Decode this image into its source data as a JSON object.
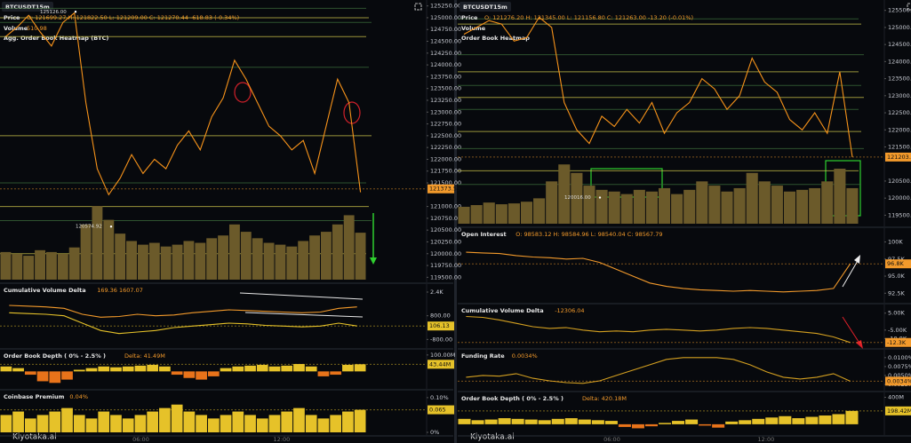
{
  "panels": [
    {
      "symbol": "BTCUSDT",
      "interval": "15m",
      "volume_label": "Volume",
      "volume_value": "510.98",
      "heatmap_title": "Agg. Order Book Heatmap (BTC)",
      "logo": "Kiyotaka.ai",
      "time_labels": [
        "06:00",
        "12:00"
      ],
      "panes": [
        {
          "title": "Price",
          "readout": "O: 121699.27  H: 121822.50  L: 121209.00  C: 121270.44  -618.83 (-0.34%)",
          "ylim": [
            119450,
            125300
          ],
          "yticks": [
            {
              "value": 125250,
              "label": "125250.00"
            },
            {
              "value": 125000,
              "label": "125000.00"
            },
            {
              "value": 124750,
              "label": "124750.00"
            },
            {
              "value": 124500,
              "label": "124500.00"
            },
            {
              "value": 124250,
              "label": "124250.00"
            },
            {
              "value": 124000,
              "label": "124000.00"
            },
            {
              "value": 123750,
              "label": "123750.00"
            },
            {
              "value": 123500,
              "label": "123500.00"
            },
            {
              "value": 123250,
              "label": "123250.00"
            },
            {
              "value": 123000,
              "label": "123000.00"
            },
            {
              "value": 122750,
              "label": "122750.00"
            },
            {
              "value": 122500,
              "label": "122500.00"
            },
            {
              "value": 122250,
              "label": "122250.00"
            },
            {
              "value": 122000,
              "label": "122000.00"
            },
            {
              "value": 121750,
              "label": "121750.00"
            },
            {
              "value": 121500,
              "label": "121500.00"
            },
            {
              "value": 121000,
              "label": "121000.00"
            },
            {
              "value": 120750,
              "label": "120750.00"
            },
            {
              "value": 120500,
              "label": "120500.00"
            },
            {
              "value": 120250,
              "label": "120250.00"
            },
            {
              "value": 120000,
              "label": "120000.00"
            },
            {
              "value": 119750,
              "label": "119750.00"
            },
            {
              "value": 119500,
              "label": "119500.00"
            }
          ],
          "tag": {
            "value": 121373.59,
            "label": "121373.59",
            "color": "#f39a2b"
          },
          "levels": [
            125200,
            125000,
            124900,
            124600,
            123950,
            122500,
            121500,
            121000,
            120700,
            120000
          ],
          "annotations": [
            {
              "value": 125126,
              "label": "125126.00"
            },
            {
              "value": 120574.92,
              "label": "120574.92"
            }
          ],
          "series": [
            {
              "type": "bar",
              "color": "#6b5a2a",
              "ylim": [
                0,
                3000
              ],
              "values": [
                300,
                280,
                260,
                320,
                300,
                280,
                350,
                600,
                800,
                650,
                500,
                420,
                380,
                400,
                360,
                380,
                420,
                400,
                450,
                480,
                600,
                520,
                450,
                400,
                380,
                360,
                420,
                480,
                520,
                600,
                700,
                510
              ]
            },
            {
              "type": "line",
              "color": "#f7931a",
              "values": [
                124600,
                124800,
                125050,
                124700,
                124400,
                124900,
                125100,
                123200,
                121800,
                121250,
                121600,
                122100,
                121700,
                122000,
                121800,
                122300,
                122600,
                122200,
                122900,
                123300,
                124100,
                123700,
                123200,
                122700,
                122500,
                122200,
                122400,
                121700,
                122700,
                123700,
                123200,
                121300
              ]
            }
          ]
        },
        {
          "title": "Cumulative Volume Delta",
          "readout": "169.36  1607.07",
          "ylim": [
            -1200,
            2700
          ],
          "yticks": [
            {
              "value": 2400,
              "label": "2.4K"
            },
            {
              "value": 800,
              "label": "800.00"
            },
            {
              "value": -800,
              "label": "-800.00"
            }
          ],
          "tag": {
            "value": 106.13,
            "label": "106.13",
            "color": "#e6c229"
          },
          "series": [
            {
              "type": "line",
              "color": "#f39a2b",
              "values": [
                1500,
                1450,
                1400,
                1300,
                900,
                700,
                750,
                900,
                800,
                850,
                1000,
                1100,
                1200,
                1150,
                1100,
                1050,
                1000,
                1050,
                1300,
                1400
              ]
            },
            {
              "type": "line",
              "color": "#e6c229",
              "values": [
                1000,
                950,
                900,
                800,
                300,
                -200,
                -400,
                -300,
                -200,
                0,
                100,
                200,
                300,
                250,
                150,
                100,
                50,
                100,
                300,
                106.13
              ]
            }
          ]
        },
        {
          "title": "Order Book Depth ( 0% - 2.5% )",
          "readout": "Delta: 41.49M",
          "ylim": [
            -90,
            110
          ],
          "yticks": [
            {
              "value": 100,
              "label": "100.00M"
            }
          ],
          "tag": {
            "value": 43.44,
            "label": "43.44M",
            "color": "#e6c229"
          },
          "series": [
            {
              "type": "bar",
              "color": "#e6c229",
              "neg_color": "#e8731a",
              "values": [
                30,
                20,
                -20,
                -60,
                -70,
                -50,
                10,
                20,
                30,
                25,
                30,
                35,
                40,
                30,
                -20,
                -40,
                -50,
                -30,
                20,
                30,
                35,
                40,
                30,
                35,
                45,
                30,
                -30,
                -20,
                40,
                43.44
              ]
            }
          ]
        },
        {
          "title": "Coinbase Premium",
          "readout": "0.04%",
          "ylim": [
            0,
            0.11
          ],
          "yticks": [
            {
              "value": 0.1,
              "label": "0.10%"
            },
            {
              "value": 0,
              "label": "0%"
            }
          ],
          "tag": {
            "value": 0.065,
            "label": "0.065",
            "color": "#e6c229"
          },
          "series": [
            {
              "type": "bar",
              "color": "#e6c229",
              "values": [
                0.05,
                0.06,
                0.04,
                0.05,
                0.06,
                0.07,
                0.05,
                0.04,
                0.06,
                0.05,
                0.04,
                0.05,
                0.06,
                0.07,
                0.08,
                0.06,
                0.05,
                0.04,
                0.05,
                0.06,
                0.05,
                0.04,
                0.05,
                0.06,
                0.07,
                0.05,
                0.04,
                0.05,
                0.06,
                0.065
              ]
            }
          ]
        }
      ]
    },
    {
      "symbol": "BTCUSDT",
      "interval": "15m",
      "volume_label": "Volume",
      "heatmap_title": "Order Book Heatmap",
      "logo": "Kiyotaka.ai",
      "time_labels": [
        "06:00",
        "12:00"
      ],
      "panes": [
        {
          "title": "Price",
          "readout": "O: 121276.20  H: 121345.00  L: 121156.80  C: 121263.00  -13.20 (-0.01%)",
          "ylim": [
            119250,
            125700
          ],
          "yticks": [
            {
              "value": 125500,
              "label": "125500.00"
            },
            {
              "value": 125000,
              "label": "125000.00"
            },
            {
              "value": 124500,
              "label": "124500.00"
            },
            {
              "value": 124000,
              "label": "124000.00"
            },
            {
              "value": 123500,
              "label": "123500.00"
            },
            {
              "value": 123000,
              "label": "123000.00"
            },
            {
              "value": 122500,
              "label": "122500.00"
            },
            {
              "value": 122000,
              "label": "122000.00"
            },
            {
              "value": 121500,
              "label": "121500.00"
            },
            {
              "value": 120500,
              "label": "120500.00"
            },
            {
              "value": 120000,
              "label": "120000.00"
            },
            {
              "value": 119500,
              "label": "119500.00"
            }
          ],
          "tag": {
            "value": 121203.1,
            "label": "121203.10",
            "color": "#f39a2b"
          },
          "levels": [
            125250,
            125100,
            124200,
            123700,
            123300,
            122950,
            122600,
            121950,
            121450,
            120800,
            120400
          ],
          "annotations": [
            {
              "value": 120016,
              "label": "120016.00"
            }
          ],
          "series": [
            {
              "type": "bar",
              "color": "#6b5a2a",
              "ylim": [
                0,
                2600
              ],
              "values": [
                200,
                220,
                250,
                230,
                240,
                260,
                300,
                500,
                700,
                600,
                450,
                400,
                380,
                350,
                400,
                380,
                420,
                350,
                400,
                500,
                450,
                380,
                420,
                600,
                500,
                450,
                380,
                400,
                420,
                500,
                650,
                420
              ]
            },
            {
              "type": "line",
              "color": "#f7931a",
              "values": [
                124800,
                125000,
                125200,
                125100,
                124600,
                124700,
                125300,
                125000,
                122800,
                122000,
                121600,
                122400,
                122100,
                122600,
                122200,
                122800,
                121900,
                122500,
                122800,
                123500,
                123200,
                122600,
                123000,
                124100,
                123400,
                123100,
                122300,
                122000,
                122500,
                121900,
                123700,
                121200
              ]
            }
          ]
        },
        {
          "title": "Open Interest",
          "readout": "O: 98583.12  H: 98584.96  L: 98540.04  C: 98567.79",
          "ylim": [
            91500,
            101500
          ],
          "yticks": [
            {
              "value": 100000,
              "label": "100K"
            },
            {
              "value": 97500,
              "label": "97.5K"
            },
            {
              "value": 95000,
              "label": "95.0K"
            },
            {
              "value": 92500,
              "label": "92.5K"
            }
          ],
          "tag": {
            "value": 96800,
            "label": "96.8K",
            "color": "#f39a2b"
          },
          "series": [
            {
              "type": "line",
              "color": "#f39a2b",
              "values": [
                98500,
                98400,
                98300,
                98000,
                97800,
                97700,
                97500,
                97600,
                97000,
                96000,
                95000,
                94000,
                93500,
                93200,
                93000,
                92900,
                92800,
                92900,
                92800,
                92700,
                92800,
                92900,
                93200,
                96800
              ]
            }
          ]
        },
        {
          "title": "Cumulative Volume Delta",
          "readout": "-12306.04",
          "ylim": [
            -14000,
            8000
          ],
          "yticks": [
            {
              "value": 5000,
              "label": "5.00K"
            },
            {
              "value": -5000,
              "label": "-5.00K"
            },
            {
              "value": -10000,
              "label": "-10.0K"
            }
          ],
          "tag": {
            "value": -12300,
            "label": "-12.3K",
            "color": "#f39a2b"
          },
          "series": [
            {
              "type": "line",
              "color": "#d4a020",
              "values": [
                3000,
                2500,
                1000,
                -1000,
                -3000,
                -4000,
                -3500,
                -5000,
                -6000,
                -5500,
                -6000,
                -5000,
                -4500,
                -5000,
                -5500,
                -5000,
                -4000,
                -3500,
                -4000,
                -5000,
                -6000,
                -7000,
                -9000,
                -12300
              ]
            }
          ]
        },
        {
          "title": "Funding Rate",
          "readout": "0.0034%",
          "ylim": [
            0.0015,
            0.0112
          ],
          "yticks": [
            {
              "value": 0.01,
              "label": "0.0100%"
            },
            {
              "value": 0.0075,
              "label": "0.0075%"
            },
            {
              "value": 0.005,
              "label": "0.0050%"
            },
            {
              "value": 0.0025,
              "label": "0.0025%"
            }
          ],
          "tag": {
            "value": 0.0034,
            "label": "0.0034%",
            "color": "#f39a2b"
          },
          "series": [
            {
              "type": "line",
              "color": "#d4a020",
              "values": [
                0.0045,
                0.005,
                0.0048,
                0.0055,
                0.0042,
                0.0035,
                0.003,
                0.0028,
                0.0035,
                0.005,
                0.0065,
                0.008,
                0.0095,
                0.01,
                0.01,
                0.01,
                0.0095,
                0.008,
                0.006,
                0.0045,
                0.004,
                0.0045,
                0.0055,
                0.0034
              ]
            }
          ]
        },
        {
          "title": "Order Book Depth ( 0% - 2.5% )",
          "readout": "Delta: 420.18M",
          "ylim": [
            -120,
            420
          ],
          "yticks": [
            {
              "value": 400,
              "label": "400M"
            }
          ],
          "tag": {
            "value": 198.42,
            "label": "198.42M",
            "color": "#e6c229"
          },
          "series": [
            {
              "type": "bar",
              "color": "#e6c229",
              "neg_color": "#e8731a",
              "values": [
                80,
                60,
                70,
                90,
                80,
                70,
                60,
                80,
                90,
                70,
                60,
                50,
                -40,
                -60,
                -30,
                20,
                50,
                70,
                -20,
                -50,
                40,
                60,
                80,
                100,
                120,
                90,
                110,
                130,
                150,
                198.42
              ]
            }
          ]
        }
      ]
    }
  ]
}
